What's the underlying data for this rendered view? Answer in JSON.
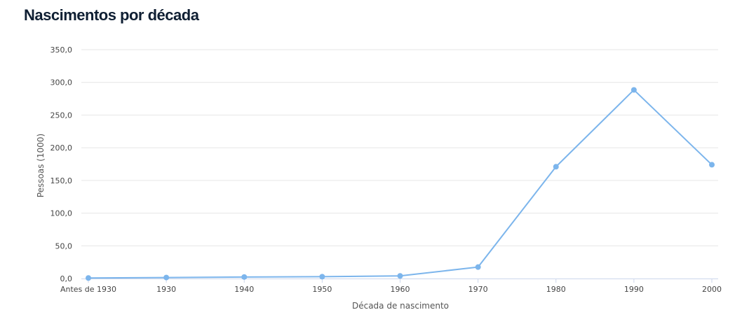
{
  "page": {
    "title": "Nascimentos por década"
  },
  "chart_data": {
    "type": "line",
    "title": "Nascimentos por década",
    "xlabel": "Década de nascimento",
    "ylabel": "Pessoas (1000)",
    "categories": [
      "Antes de 1930",
      "1930",
      "1940",
      "1950",
      "1960",
      "1970",
      "1980",
      "1990",
      "2000"
    ],
    "series": [
      {
        "values": [
          0.8,
          1.5,
          2.3,
          2.8,
          4.0,
          17.5,
          171.0,
          288.5,
          174.0
        ]
      }
    ],
    "ylim": [
      0,
      350
    ],
    "yticks": [
      "0,0",
      "50,0",
      "100,0",
      "150,0",
      "200,0",
      "250,0",
      "300,0",
      "350,0"
    ],
    "grid": true,
    "legend": "none",
    "colors": {
      "line": "#7cb5ec",
      "grid": "#e6e6e6",
      "axis": "#ccd6eb"
    }
  }
}
